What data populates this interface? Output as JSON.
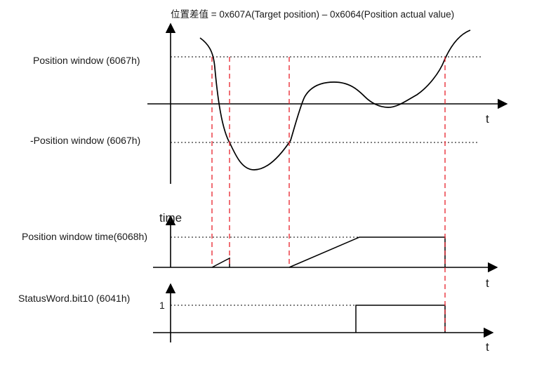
{
  "title": "位置差值 = 0x607A(Target position) – 0x6064(Position actual value)",
  "top_plot": {
    "upper_label": "Position window (6067h)",
    "lower_label": "-Position window (6067h)",
    "x_axis_label": "t"
  },
  "middle_plot": {
    "y_axis_label": "time",
    "level_label": "Position window time(6068h)",
    "x_axis_label": "t"
  },
  "bottom_plot": {
    "signal_label": "StatusWord.bit10 (6041h)",
    "level_label": "1",
    "x_axis_label": "t"
  },
  "colors": {
    "axis": "#000000",
    "marker_lines": "#e8202a"
  }
}
